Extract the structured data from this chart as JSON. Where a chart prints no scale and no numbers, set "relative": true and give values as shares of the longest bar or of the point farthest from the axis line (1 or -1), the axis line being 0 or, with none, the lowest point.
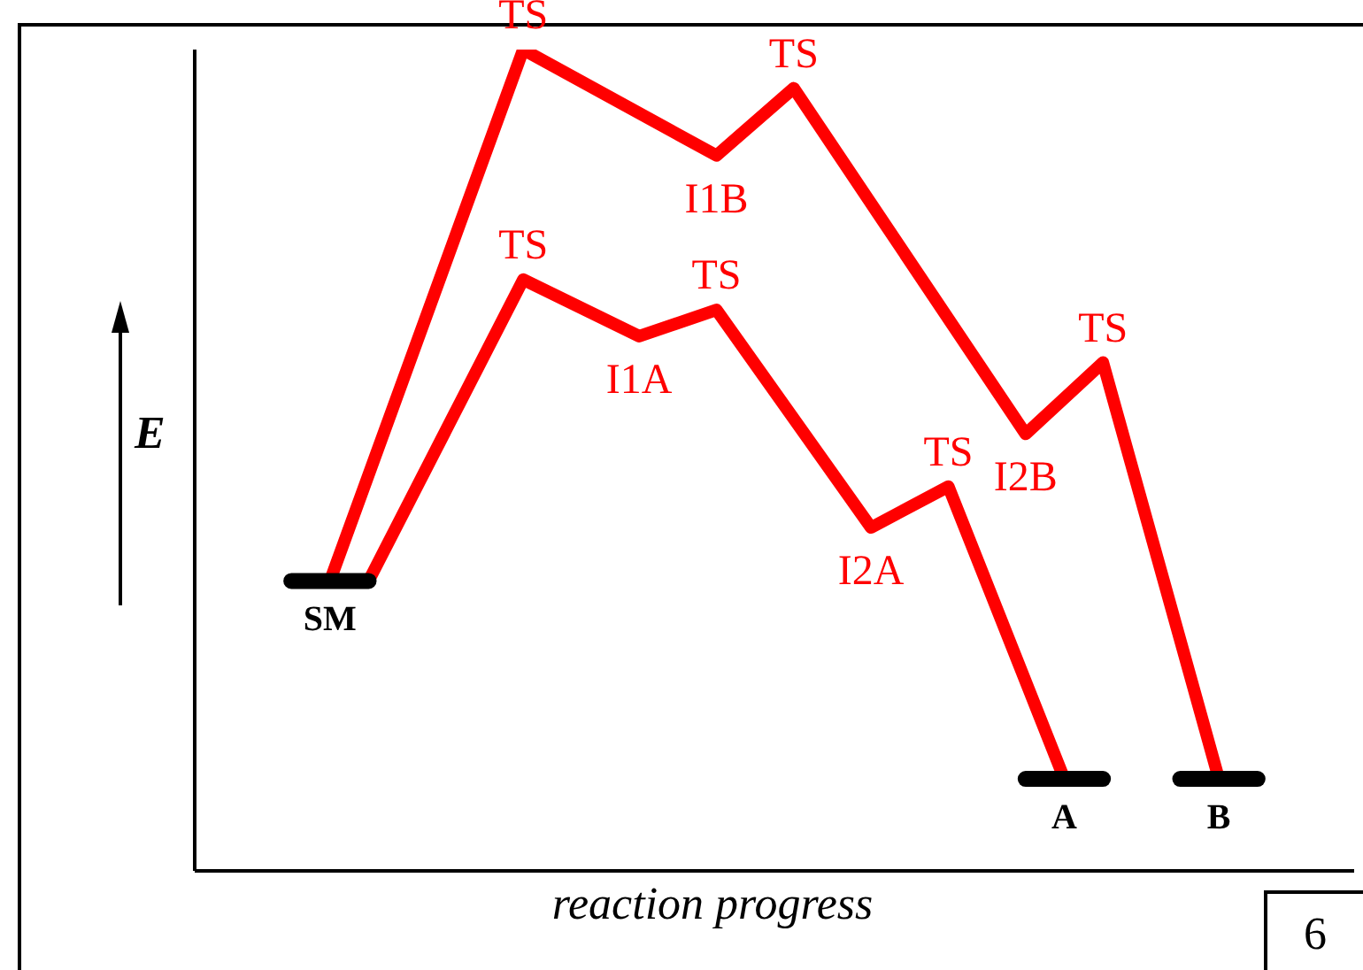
{
  "chart_data": {
    "type": "line",
    "relative": true,
    "xlabel": "reaction progress",
    "ylabel": "E",
    "tick_labels": false,
    "grid": false,
    "legend": false,
    "marker": "none",
    "categories": [
      null,
      null,
      null,
      null,
      null,
      null,
      null,
      null,
      null,
      null,
      null,
      null,
      null,
      null,
      null,
      null,
      null,
      null,
      null,
      null,
      null,
      null,
      null,
      null,
      null,
      null,
      null,
      null,
      null,
      null
    ],
    "series": [
      {
        "color": "#ff0000",
        "values": [
          null,
          null,
          null,
          0.353,
          null,
          null,
          null,
          null,
          1.0,
          null,
          null,
          null,
          null,
          0.871,
          null,
          0.953,
          null,
          null,
          null,
          null,
          null,
          0.532,
          null,
          0.619,
          null,
          null,
          0.112,
          null,
          null,
          null
        ]
      },
      {
        "color": "#ff0000",
        "values": [
          null,
          null,
          null,
          null,
          0.353,
          null,
          null,
          null,
          0.72,
          null,
          null,
          0.651,
          null,
          0.683,
          null,
          null,
          null,
          0.418,
          null,
          0.468,
          null,
          null,
          0.112,
          null,
          null,
          null,
          null,
          null,
          null,
          null
        ]
      },
      {
        "name": "SM",
        "color": "#000000",
        "values": [
          null,
          null,
          0.353,
          0.353,
          0.353,
          null,
          null,
          null,
          null,
          null,
          null,
          null,
          null,
          null,
          null,
          null,
          null,
          null,
          null,
          null,
          null,
          null,
          null,
          null,
          null,
          null,
          null,
          null,
          null,
          null
        ]
      },
      {
        "name": "A",
        "color": "#000000",
        "values": [
          null,
          null,
          null,
          null,
          null,
          null,
          null,
          null,
          null,
          null,
          null,
          null,
          null,
          null,
          null,
          null,
          null,
          null,
          null,
          null,
          null,
          0.112,
          0.112,
          0.112,
          null,
          null,
          null,
          null,
          null,
          null
        ]
      },
      {
        "name": "B",
        "color": "#000000",
        "values": [
          null,
          null,
          null,
          null,
          null,
          null,
          null,
          null,
          null,
          null,
          null,
          null,
          null,
          null,
          null,
          null,
          null,
          null,
          null,
          null,
          null,
          null,
          null,
          null,
          null,
          0.112,
          0.112,
          0.112,
          null,
          null
        ]
      }
    ],
    "annotations": [
      {
        "text": "TS",
        "y": 1.0
      },
      {
        "text": "I1B",
        "y": 0.871
      },
      {
        "text": "TS",
        "y": 0.953
      },
      {
        "text": "I2B",
        "y": 0.532
      },
      {
        "text": "TS",
        "y": 0.619
      },
      {
        "text": "TS",
        "y": 0.72
      },
      {
        "text": "I1A",
        "y": 0.651
      },
      {
        "text": "TS",
        "y": 0.683
      },
      {
        "text": "I2A",
        "y": 0.418
      },
      {
        "text": "TS",
        "y": 0.468
      },
      "6"
    ]
  }
}
